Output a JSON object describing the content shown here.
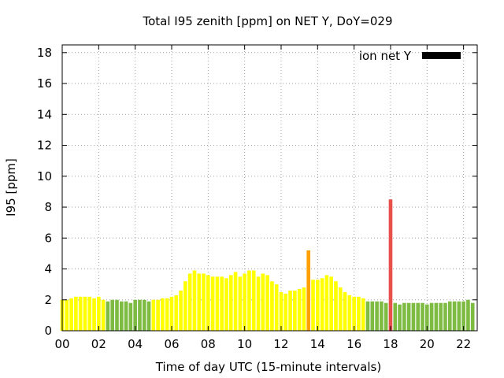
{
  "chart_data": {
    "type": "bar",
    "title": "Total I95 zenith [ppm] on NET Y, DoY=029",
    "xlabel": "Time of day UTC (15-minute intervals)",
    "ylabel": "I95 [ppm]",
    "xlim": [
      0,
      22.75
    ],
    "ylim": [
      0,
      18.5
    ],
    "xticks": [
      "00",
      "02",
      "04",
      "06",
      "08",
      "10",
      "12",
      "14",
      "16",
      "18",
      "20",
      "22"
    ],
    "yticks": [
      "0",
      "2",
      "4",
      "6",
      "8",
      "10",
      "12",
      "14",
      "16",
      "18"
    ],
    "grid": true,
    "bar_interval_hours": 0.25,
    "legend": {
      "position": "top-right",
      "entries": [
        {
          "label": "ion net Y",
          "color": "#000000"
        }
      ]
    },
    "colors": {
      "yellow": "#ffff00",
      "green": "#7dbb42",
      "orange": "#ffa000",
      "red": "#e8514a"
    },
    "series": [
      {
        "name": "ion net Y",
        "x": [
          0.0,
          0.25,
          0.5,
          0.75,
          1.0,
          1.25,
          1.5,
          1.75,
          2.0,
          2.25,
          2.5,
          2.75,
          3.0,
          3.25,
          3.5,
          3.75,
          4.0,
          4.25,
          4.5,
          4.75,
          5.0,
          5.25,
          5.5,
          5.75,
          6.0,
          6.25,
          6.5,
          6.75,
          7.0,
          7.25,
          7.5,
          7.75,
          8.0,
          8.25,
          8.5,
          8.75,
          9.0,
          9.25,
          9.5,
          9.75,
          10.0,
          10.25,
          10.5,
          10.75,
          11.0,
          11.25,
          11.5,
          11.75,
          12.0,
          12.25,
          12.5,
          12.75,
          13.0,
          13.25,
          13.5,
          13.75,
          14.0,
          14.25,
          14.5,
          14.75,
          15.0,
          15.25,
          15.5,
          15.75,
          16.0,
          16.25,
          16.5,
          16.75,
          17.0,
          17.25,
          17.5,
          17.75,
          18.0,
          18.25,
          18.5,
          18.75,
          19.0,
          19.25,
          19.5,
          19.75,
          20.0,
          20.25,
          20.5,
          20.75,
          21.0,
          21.25,
          21.5,
          21.75,
          22.0,
          22.25,
          22.5
        ],
        "values": [
          2.0,
          2.0,
          2.1,
          2.2,
          2.2,
          2.2,
          2.2,
          2.1,
          2.2,
          2.0,
          1.9,
          2.0,
          2.0,
          1.9,
          1.9,
          1.8,
          2.0,
          2.0,
          2.0,
          1.9,
          2.0,
          2.0,
          2.1,
          2.1,
          2.2,
          2.3,
          2.6,
          3.2,
          3.7,
          3.9,
          3.7,
          3.7,
          3.6,
          3.5,
          3.5,
          3.5,
          3.4,
          3.6,
          3.8,
          3.5,
          3.7,
          3.9,
          3.9,
          3.5,
          3.7,
          3.6,
          3.2,
          3.0,
          2.5,
          2.4,
          2.6,
          2.6,
          2.7,
          2.8,
          5.2,
          3.3,
          3.3,
          3.4,
          3.6,
          3.5,
          3.2,
          2.8,
          2.5,
          2.3,
          2.2,
          2.2,
          2.1,
          1.9,
          1.9,
          1.9,
          1.9,
          1.8,
          8.5,
          1.8,
          1.7,
          1.8,
          1.8,
          1.8,
          1.8,
          1.8,
          1.7,
          1.8,
          1.8,
          1.8,
          1.8,
          1.9,
          1.9,
          1.9,
          1.9,
          2.0,
          1.8
        ],
        "bar_colors": [
          "yellow",
          "yellow",
          "yellow",
          "yellow",
          "yellow",
          "yellow",
          "yellow",
          "yellow",
          "yellow",
          "yellow",
          "green",
          "green",
          "green",
          "green",
          "green",
          "green",
          "green",
          "green",
          "green",
          "green",
          "yellow",
          "yellow",
          "yellow",
          "yellow",
          "yellow",
          "yellow",
          "yellow",
          "yellow",
          "yellow",
          "yellow",
          "yellow",
          "yellow",
          "yellow",
          "yellow",
          "yellow",
          "yellow",
          "yellow",
          "yellow",
          "yellow",
          "yellow",
          "yellow",
          "yellow",
          "yellow",
          "yellow",
          "yellow",
          "yellow",
          "yellow",
          "yellow",
          "yellow",
          "yellow",
          "yellow",
          "yellow",
          "yellow",
          "yellow",
          "orange",
          "yellow",
          "yellow",
          "yellow",
          "yellow",
          "yellow",
          "yellow",
          "yellow",
          "yellow",
          "yellow",
          "yellow",
          "yellow",
          "yellow",
          "green",
          "green",
          "green",
          "green",
          "green",
          "red",
          "green",
          "green",
          "green",
          "green",
          "green",
          "green",
          "green",
          "green",
          "green",
          "green",
          "green",
          "green",
          "green",
          "green",
          "green",
          "green",
          "green",
          "green"
        ]
      }
    ]
  }
}
